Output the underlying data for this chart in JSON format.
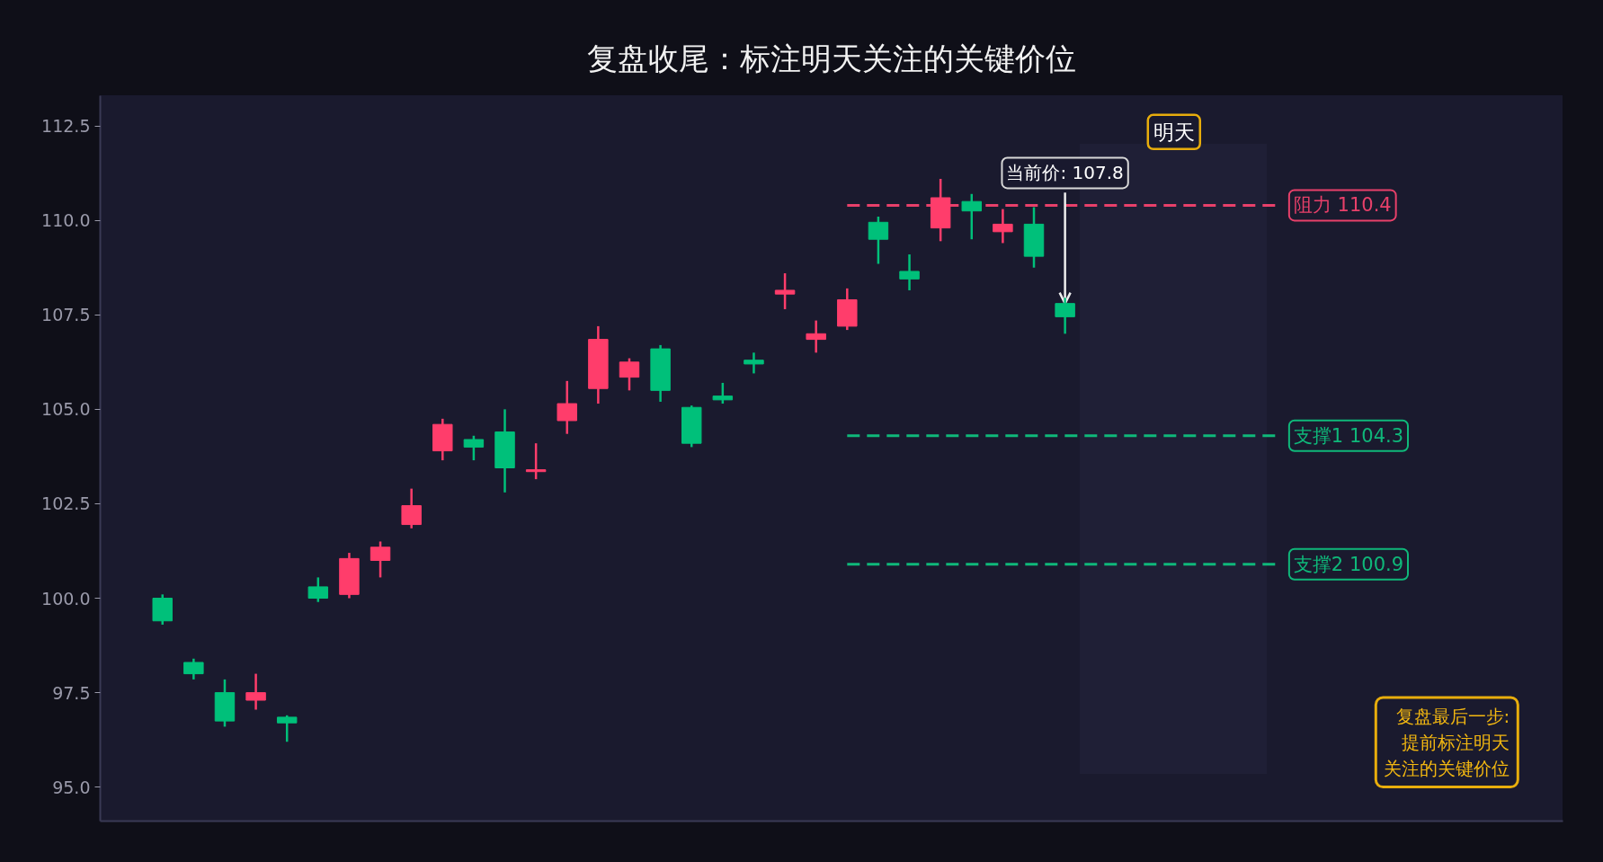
{
  "chart_data": {
    "type": "candlestick",
    "title": "复盘收尾：标注明天关注的关键价位",
    "categories": [
      null,
      null,
      null,
      null,
      null,
      null,
      null,
      null,
      null,
      null,
      null,
      null,
      null,
      null,
      null,
      null,
      null,
      null,
      null,
      null,
      null,
      null,
      null,
      null,
      null,
      null,
      null,
      null,
      null,
      null
    ],
    "ohlc": [
      [
        99.4,
        100.1,
        99.3,
        100.0
      ],
      [
        98.0,
        98.4,
        97.85,
        98.3
      ],
      [
        96.75,
        97.85,
        96.6,
        97.5
      ],
      [
        97.5,
        98.0,
        97.05,
        97.3
      ],
      [
        96.7,
        96.9,
        96.2,
        96.85
      ],
      [
        100.0,
        100.55,
        99.9,
        100.3
      ],
      [
        101.05,
        101.2,
        100.0,
        100.1
      ],
      [
        101.35,
        101.5,
        100.55,
        101.0
      ],
      [
        102.45,
        102.9,
        101.85,
        101.95
      ],
      [
        104.6,
        104.75,
        103.65,
        103.9
      ],
      [
        104.0,
        104.3,
        103.65,
        104.2
      ],
      [
        103.45,
        105.0,
        102.8,
        104.4
      ],
      [
        103.4,
        104.1,
        103.15,
        103.35
      ],
      [
        105.15,
        105.75,
        104.35,
        104.7
      ],
      [
        106.85,
        107.2,
        105.15,
        105.55
      ],
      [
        106.25,
        106.35,
        105.5,
        105.85
      ],
      [
        105.5,
        106.7,
        105.2,
        106.6
      ],
      [
        104.1,
        105.1,
        104.0,
        105.05
      ],
      [
        105.25,
        105.7,
        105.15,
        105.35
      ],
      [
        106.2,
        106.5,
        105.95,
        106.3
      ],
      [
        108.15,
        108.6,
        107.65,
        108.05
      ],
      [
        107.0,
        107.35,
        106.5,
        106.85
      ],
      [
        107.9,
        108.2,
        107.1,
        107.2
      ],
      [
        109.5,
        110.1,
        108.85,
        109.95
      ],
      [
        108.45,
        109.1,
        108.15,
        108.65
      ],
      [
        110.6,
        111.1,
        109.45,
        109.8
      ],
      [
        110.25,
        110.7,
        109.5,
        110.5
      ],
      [
        109.9,
        110.3,
        109.4,
        109.7
      ],
      [
        109.05,
        110.35,
        108.75,
        109.9
      ],
      [
        107.45,
        107.95,
        107.0,
        107.8
      ]
    ],
    "colors": [
      "#00c07a",
      "#00c07a",
      "#00c07a",
      "#ff3d6b",
      "#00c07a",
      "#00c07a",
      "#ff3d6b",
      "#ff3d6b",
      "#ff3d6b",
      "#ff3d6b",
      "#00c07a",
      "#00c07a",
      "#ff3d6b",
      "#ff3d6b",
      "#ff3d6b",
      "#ff3d6b",
      "#00c07a",
      "#00c07a",
      "#00c07a",
      "#00c07a",
      "#ff3d6b",
      "#ff3d6b",
      "#ff3d6b",
      "#00c07a",
      "#00c07a",
      "#ff3d6b",
      "#00c07a",
      "#ff3d6b",
      "#00c07a",
      "#00c07a"
    ],
    "ylim": [
      94.1,
      113.3
    ],
    "yticks": [
      {
        "value": 95,
        "label": "95.0"
      },
      97.5,
      {
        "value": 100,
        "label": "100.0"
      },
      102.5,
      {
        "value": 105,
        "label": "105.0"
      },
      107.5,
      {
        "value": 110,
        "label": "110.0"
      },
      112.5
    ],
    "tick_labels": "y",
    "ref_lines": [
      {
        "axis": "y",
        "value": 110.4,
        "label": "阻力 110.4",
        "color": "#e8406a",
        "line_style": "dashed"
      },
      {
        "axis": "y",
        "value": 104.3,
        "label": "支撑1 104.3",
        "color": "#0fb87a",
        "line_style": "dashed"
      },
      {
        "axis": "y",
        "value": 100.9,
        "label": "支撑2 100.9",
        "color": "#0fb87a",
        "line_style": "dashed"
      }
    ],
    "annotations": [
      "明天",
      {
        "text": "当前价: 107.8",
        "y": 107.8
      },
      "复盘最后一步:提前标注明天关注的关键价位"
    ]
  }
}
